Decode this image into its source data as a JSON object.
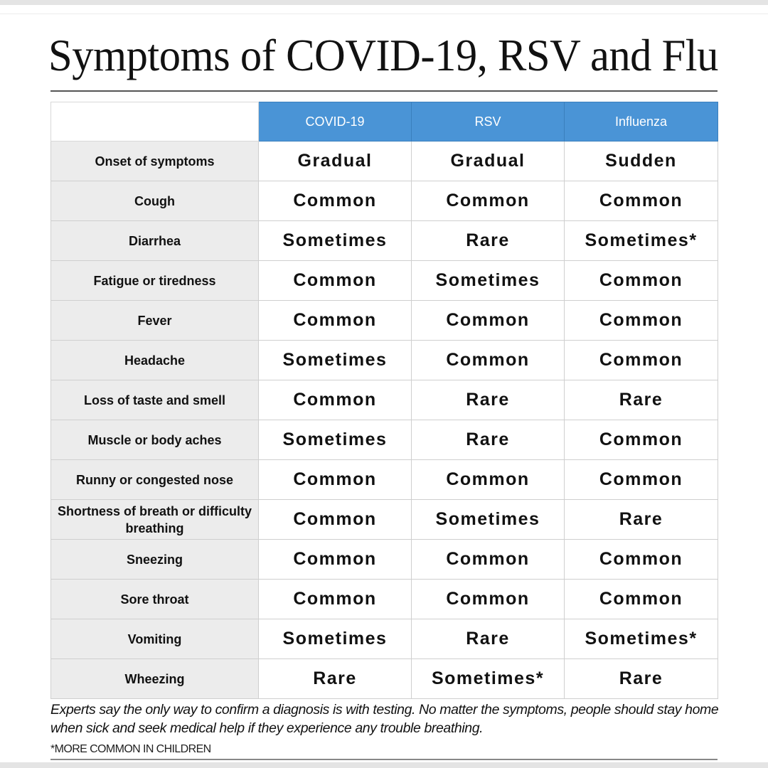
{
  "title": "Symptoms of COVID-19, RSV and Flu",
  "table": {
    "headers": [
      "COVID-19",
      "RSV",
      "Influenza"
    ],
    "header_color": "#4a94d6",
    "rows": [
      {
        "symptom": "Onset of symptoms",
        "values": [
          "Gradual",
          "Gradual",
          "Sudden"
        ]
      },
      {
        "symptom": "Cough",
        "values": [
          "Common",
          "Common",
          "Common"
        ]
      },
      {
        "symptom": "Diarrhea",
        "values": [
          "Sometimes",
          "Rare",
          "Sometimes*"
        ]
      },
      {
        "symptom": "Fatigue or tiredness",
        "values": [
          "Common",
          "Sometimes",
          "Common"
        ]
      },
      {
        "symptom": "Fever",
        "values": [
          "Common",
          "Common",
          "Common"
        ]
      },
      {
        "symptom": "Headache",
        "values": [
          "Sometimes",
          "Common",
          "Common"
        ]
      },
      {
        "symptom": "Loss of taste and smell",
        "values": [
          "Common",
          "Rare",
          "Rare"
        ]
      },
      {
        "symptom": "Muscle or body aches",
        "values": [
          "Sometimes",
          "Rare",
          "Common"
        ]
      },
      {
        "symptom": "Runny or congested nose",
        "values": [
          "Common",
          "Common",
          "Common"
        ]
      },
      {
        "symptom": "Shortness of breath or difficulty breathing",
        "values": [
          "Common",
          "Sometimes",
          "Rare"
        ]
      },
      {
        "symptom": "Sneezing",
        "values": [
          "Common",
          "Common",
          "Common"
        ]
      },
      {
        "symptom": "Sore throat",
        "values": [
          "Common",
          "Common",
          "Common"
        ]
      },
      {
        "symptom": "Vomiting",
        "values": [
          "Sometimes",
          "Rare",
          "Sometimes*"
        ]
      },
      {
        "symptom": "Wheezing",
        "values": [
          "Rare",
          "Sometimes*",
          "Rare"
        ]
      }
    ]
  },
  "note": "Experts say the only way to confirm a diagnosis is with testing. No matter the symptoms, people should stay home when sick and seek medical help if they experience any trouble breathing.",
  "footnote": "*MORE COMMON IN CHILDREN"
}
